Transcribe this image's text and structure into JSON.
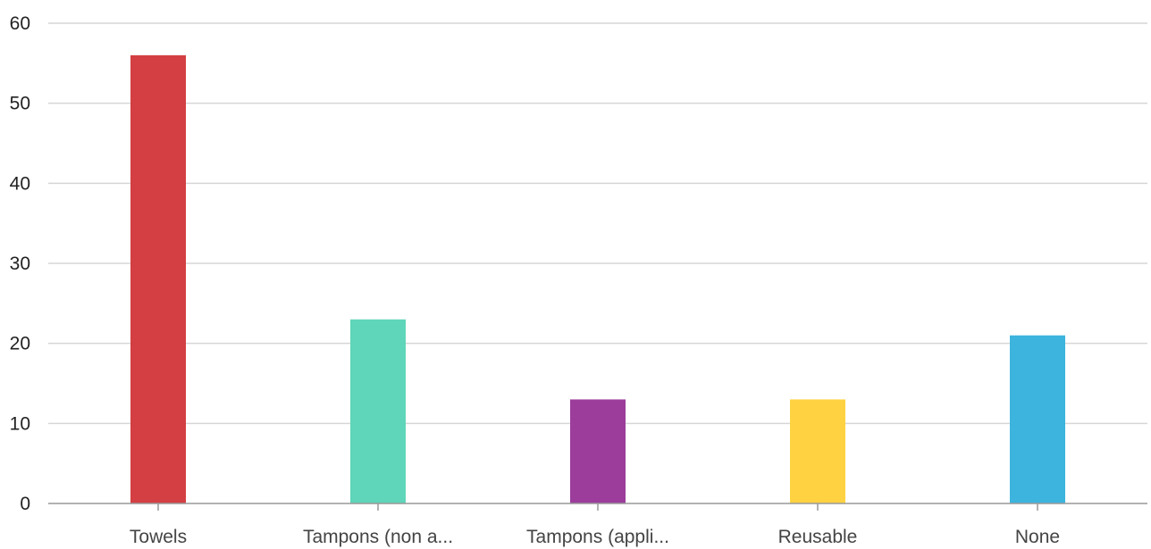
{
  "chart_data": {
    "type": "bar",
    "categories": [
      "Towels",
      "Tampons (non a...",
      "Tampons (appli...",
      "Reusable",
      "None"
    ],
    "values": [
      56,
      23,
      13,
      13,
      21
    ],
    "colors": [
      "#d33f43",
      "#5fd5b9",
      "#9c3d9c",
      "#ffd241",
      "#3cb4de"
    ],
    "ylim": [
      0,
      60
    ],
    "yticks": [
      0,
      10,
      20,
      30,
      40,
      50,
      60
    ],
    "grid": true,
    "title": "",
    "xlabel": "",
    "ylabel": ""
  }
}
